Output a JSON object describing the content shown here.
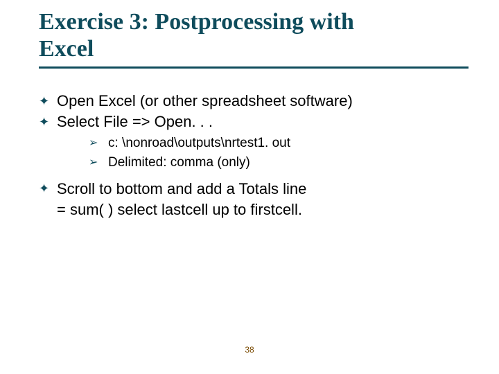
{
  "colors": {
    "title": "#0f4c5c",
    "rule": "#0f4c5c",
    "bullet": "#0f4c5c",
    "body_text": "#000000",
    "page_num": "#7a4a00",
    "background": "#ffffff"
  },
  "typography": {
    "title_fontsize_pt": 26,
    "body_fontsize_pt": 17,
    "sub_fontsize_pt": 15,
    "pagenum_fontsize_pt": 9,
    "title_family": "serif",
    "body_family": "sans-serif"
  },
  "title": {
    "line1": "Exercise 3:  Postprocessing with",
    "line2": "Excel"
  },
  "bullets": {
    "b1": "Open Excel (or other spreadsheet software)",
    "b2": "Select File => Open. . .",
    "sub1": "c: \\nonroad\\outputs\\nrtest1. out",
    "sub2": "Delimited:  comma (only)",
    "b3_l1": "Scroll to bottom and add a Totals line",
    "b3_l2": " = sum( )  select lastcell up to firstcell."
  },
  "glyphs": {
    "level1_bullet": "✦",
    "level2_bullet": "➢"
  },
  "page_number": "38"
}
